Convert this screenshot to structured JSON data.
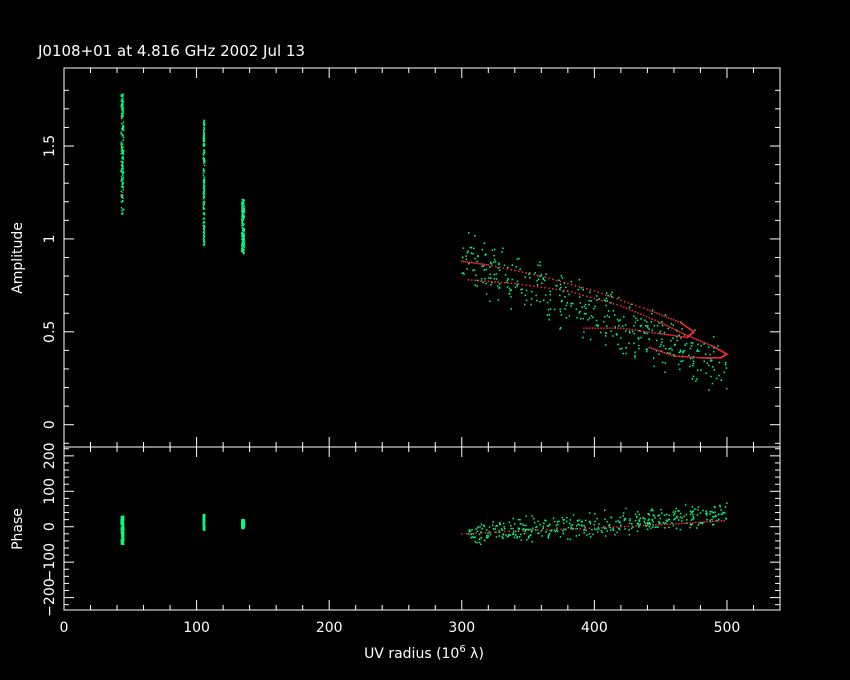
{
  "chart_data": [
    {
      "type": "scatter",
      "panel": "amplitude",
      "title": "J0108+01 at 4.816 GHz 2002 Jul 13",
      "xlabel": "UV radius  (10",
      "xlabel_sup": "6",
      "xlabel_tail": " λ)",
      "ylabel": "Amplitude",
      "xlim": [
        0,
        540
      ],
      "ylim": [
        -0.12,
        1.92
      ],
      "xticks": [
        0,
        100,
        200,
        300,
        400,
        500
      ],
      "xtick_labels": [
        "0",
        "100",
        "200",
        "300",
        "400",
        "500"
      ],
      "yticks": [
        0,
        0.5,
        1,
        1.5
      ],
      "ytick_labels": [
        "0",
        "0.5",
        "1",
        "1.5"
      ],
      "series": [
        {
          "kind": "observed",
          "color": "#00ff7f",
          "clusters": [
            {
              "x": [
                43,
                45
              ],
              "y": [
                1.13,
                1.78
              ]
            },
            {
              "x": [
                105,
                106
              ],
              "y": [
                0.96,
                1.64
              ]
            },
            {
              "x": [
                134,
                136
              ],
              "y": [
                0.92,
                1.22
              ]
            }
          ],
          "trend": {
            "x": [
              300,
              500
            ],
            "y": [
              0.9,
              0.3
            ]
          }
        },
        {
          "kind": "model",
          "color": "#ff3030",
          "points": [
            [
              44,
              1.25
            ],
            [
              44,
              1.23
            ],
            [
              134,
              1.16
            ]
          ],
          "curves": [
            [
              [
                300,
                0.88
              ],
              [
                320,
                0.86
              ],
              [
                360,
                0.8
              ],
              [
                400,
                0.72
              ],
              [
                440,
                0.62
              ],
              [
                465,
                0.55
              ],
              [
                475,
                0.5
              ],
              [
                470,
                0.47
              ],
              [
                450,
                0.49
              ],
              [
                420,
                0.52
              ],
              [
                390,
                0.52
              ]
            ],
            [
              [
                305,
                0.78
              ],
              [
                340,
                0.76
              ],
              [
                380,
                0.72
              ],
              [
                420,
                0.64
              ],
              [
                450,
                0.55
              ],
              [
                470,
                0.48
              ],
              [
                490,
                0.42
              ],
              [
                500,
                0.38
              ],
              [
                495,
                0.36
              ],
              [
                480,
                0.36
              ],
              [
                460,
                0.37
              ],
              [
                440,
                0.42
              ]
            ]
          ]
        }
      ]
    },
    {
      "type": "scatter",
      "panel": "phase",
      "ylabel": "Phase",
      "xlim": [
        0,
        540
      ],
      "ylim": [
        -235,
        225
      ],
      "xticks": [
        0,
        100,
        200,
        300,
        400,
        500
      ],
      "yticks": [
        -200,
        -100,
        0,
        100,
        200
      ],
      "ytick_labels": [
        "−200",
        "−100",
        "0",
        "100",
        "200"
      ],
      "series": [
        {
          "kind": "observed",
          "color": "#00ff7f",
          "clusters": [
            {
              "x": [
                43,
                45
              ],
              "y": [
                -50,
                30
              ]
            },
            {
              "x": [
                105,
                106
              ],
              "y": [
                -10,
                35
              ]
            },
            {
              "x": [
                134,
                136
              ],
              "y": [
                -5,
                20
              ]
            }
          ],
          "trend": {
            "x": [
              305,
              500
            ],
            "y": [
              -20,
              35
            ]
          }
        },
        {
          "kind": "model",
          "color": "#ff3030",
          "curve": [
            [
              300,
              -20
            ],
            [
              350,
              -10
            ],
            [
              400,
              -4
            ],
            [
              440,
              4
            ],
            [
              470,
              10
            ],
            [
              500,
              18
            ]
          ]
        }
      ]
    }
  ]
}
